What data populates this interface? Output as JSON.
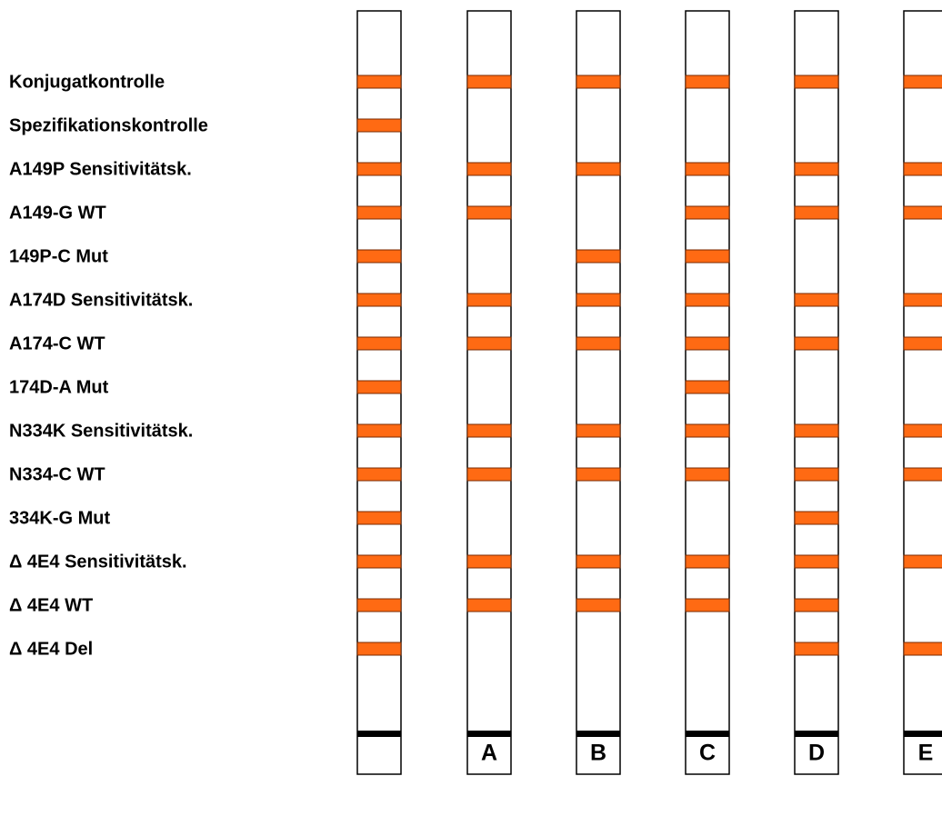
{
  "rows": [
    "Konjugatkontrolle",
    "Spezifikationskontrolle",
    "A149P Sensitivitätsk.",
    "A149-G WT",
    "149P-C Mut",
    "A174D Sensitivitätsk.",
    "A174-C WT",
    "174D-A Mut",
    "N334K Sensitivitätsk.",
    "N334-C WT",
    "334K-G Mut",
    "Δ 4E4 Sensitivitätsk.",
    "Δ 4E4 WT",
    "Δ 4E4 Del"
  ],
  "strips": [
    {
      "bands": [
        true,
        true,
        true,
        true,
        true,
        true,
        true,
        true,
        true,
        true,
        true,
        true,
        true,
        true
      ]
    },
    {
      "label": "A",
      "bands": [
        true,
        false,
        true,
        true,
        false,
        true,
        true,
        false,
        true,
        true,
        false,
        true,
        true,
        false
      ]
    },
    {
      "label": "B",
      "bands": [
        true,
        false,
        true,
        false,
        true,
        true,
        true,
        false,
        true,
        true,
        false,
        true,
        true,
        false
      ]
    },
    {
      "label": "C",
      "bands": [
        true,
        false,
        true,
        true,
        true,
        true,
        true,
        true,
        true,
        true,
        false,
        true,
        true,
        false
      ]
    },
    {
      "label": "D",
      "bands": [
        true,
        false,
        true,
        true,
        false,
        true,
        true,
        false,
        true,
        true,
        true,
        true,
        true,
        true
      ]
    },
    {
      "label": "E",
      "bands": [
        true,
        false,
        true,
        true,
        false,
        true,
        true,
        false,
        true,
        true,
        false,
        true,
        false,
        true
      ]
    }
  ]
}
